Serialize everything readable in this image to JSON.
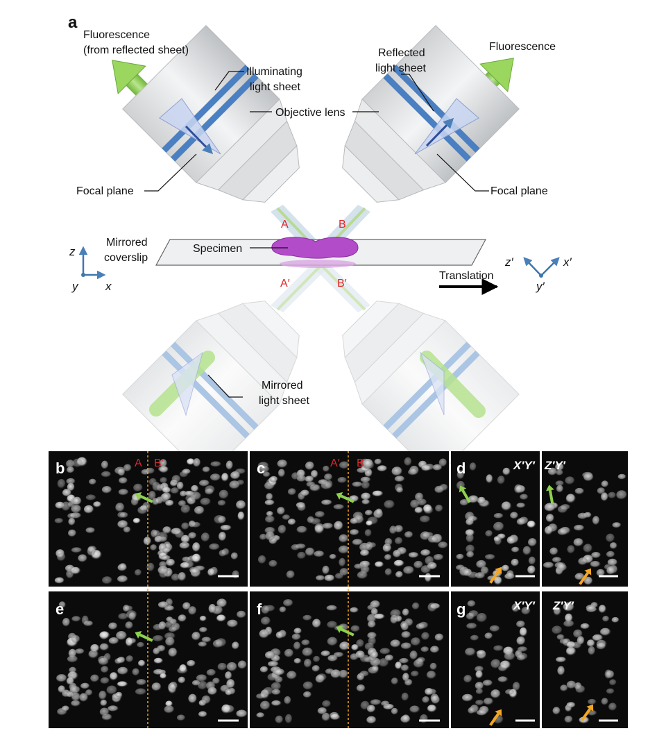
{
  "panel_a": {
    "letter": "a",
    "labels": {
      "fluor_left_1": "Fluorescence",
      "fluor_left_2": "(from reflected sheet)",
      "illum_1": "Illuminating",
      "illum_2": "light sheet",
      "objective": "Objective lens",
      "reflected_1": "Reflected",
      "reflected_2": "light sheet",
      "fluor_right": "Fluorescence",
      "focal_left": "Focal plane",
      "focal_right": "Focal plane",
      "mirrored_cov_1": "Mirrored",
      "mirrored_cov_2": "coverslip",
      "specimen": "Specimen",
      "translation": "Translation",
      "mirrored_sheet_1": "Mirrored",
      "mirrored_sheet_2": "light sheet"
    },
    "beams": {
      "A": "A",
      "B": "B",
      "A_prime": "A′",
      "B_prime": "B′"
    },
    "axes_left": {
      "z": "z",
      "y": "y",
      "x": "x"
    },
    "axes_right": {
      "z": "z′",
      "x": "x′",
      "y": "y′"
    }
  },
  "panels": {
    "b": {
      "letter": "b",
      "left_tag": "A",
      "right_tag": "B′"
    },
    "c": {
      "letter": "c",
      "left_tag": "A′",
      "right_tag": "B"
    },
    "d": {
      "letter": "d",
      "view1": "X′Y′",
      "view2": "Z′Y′"
    },
    "e": {
      "letter": "e"
    },
    "f": {
      "letter": "f"
    },
    "g": {
      "letter": "g",
      "view1": "X′Y′",
      "view2": "Z′Y′"
    }
  },
  "colors": {
    "accent_red": "#e0262b",
    "green_arrow": "#8fd14f",
    "orange_arrow": "#f5a623",
    "dashed_line": "#f5a623",
    "objective_blue": "#4a7fc1",
    "specimen": "#b24cc8"
  }
}
